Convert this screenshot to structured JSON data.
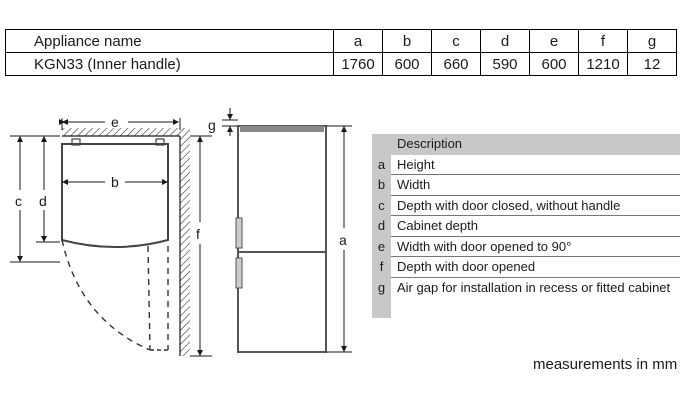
{
  "table": {
    "header": [
      "Appliance name",
      "a",
      "b",
      "c",
      "d",
      "e",
      "f",
      "g"
    ],
    "row": [
      "KGN33 (Inner handle)",
      "1760",
      "600",
      "660",
      "590",
      "600",
      "1210",
      "12"
    ]
  },
  "dimension_labels": {
    "a": "a",
    "b": "b",
    "c": "c",
    "d": "d",
    "e": "e",
    "f": "f",
    "g": "g"
  },
  "legend": {
    "title": "Description",
    "items": [
      {
        "key": "a",
        "text": "Height"
      },
      {
        "key": "b",
        "text": "Width"
      },
      {
        "key": "c",
        "text": "Depth with door closed, without handle"
      },
      {
        "key": "d",
        "text": "Cabinet depth"
      },
      {
        "key": "e",
        "text": "Width with door opened to 90°"
      },
      {
        "key": "f",
        "text": "Depth with door opened"
      },
      {
        "key": "g",
        "text": "Air gap for installation in recess or fitted cabinet"
      }
    ]
  },
  "note": "measurements in mm",
  "colors": {
    "legend_bg": "#c8c8c8",
    "line": "#1a1a1a",
    "fridge": "#555555"
  }
}
